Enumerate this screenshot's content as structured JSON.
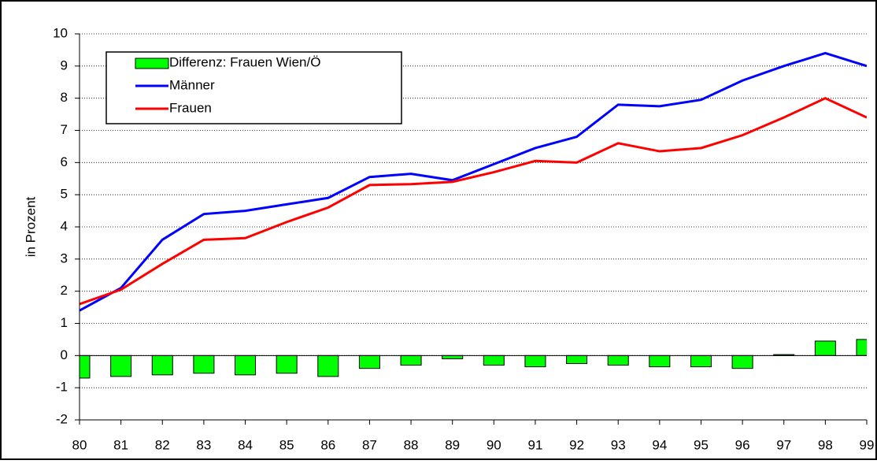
{
  "chart_data": {
    "type": "bar",
    "y_label": "in Prozent",
    "categories": [
      "80",
      "81",
      "82",
      "83",
      "84",
      "85",
      "86",
      "87",
      "88",
      "89",
      "90",
      "91",
      "92",
      "93",
      "94",
      "95",
      "96",
      "97",
      "98",
      "99"
    ],
    "series": [
      {
        "name": "Differenz: Frauen Wien/Ö",
        "type": "bar",
        "color": "#00ff00",
        "values": [
          -0.7,
          -0.65,
          -0.6,
          -0.55,
          -0.6,
          -0.55,
          -0.65,
          -0.4,
          -0.3,
          -0.1,
          -0.3,
          -0.35,
          -0.25,
          -0.3,
          -0.35,
          -0.35,
          -0.4,
          0.03,
          0.45,
          0.5
        ]
      },
      {
        "name": "Männer",
        "type": "line",
        "color": "#0000ff",
        "values": [
          1.4,
          2.1,
          3.6,
          4.4,
          4.5,
          4.7,
          4.9,
          5.55,
          5.65,
          5.45,
          5.95,
          6.45,
          6.8,
          7.8,
          7.75,
          7.95,
          8.55,
          9.0,
          9.4,
          9.0
        ]
      },
      {
        "name": "Frauen",
        "type": "line",
        "color": "#ff0000",
        "values": [
          1.6,
          2.05,
          2.85,
          3.6,
          3.65,
          4.15,
          4.6,
          5.3,
          5.33,
          5.4,
          5.7,
          6.05,
          6.0,
          6.6,
          6.35,
          6.45,
          6.85,
          7.4,
          8.0,
          7.4
        ]
      }
    ],
    "ylim": [
      -2,
      10
    ],
    "yticks": [
      -2,
      -1,
      0,
      1,
      2,
      3,
      4,
      5,
      6,
      7,
      8,
      9,
      10
    ],
    "grid": true
  }
}
